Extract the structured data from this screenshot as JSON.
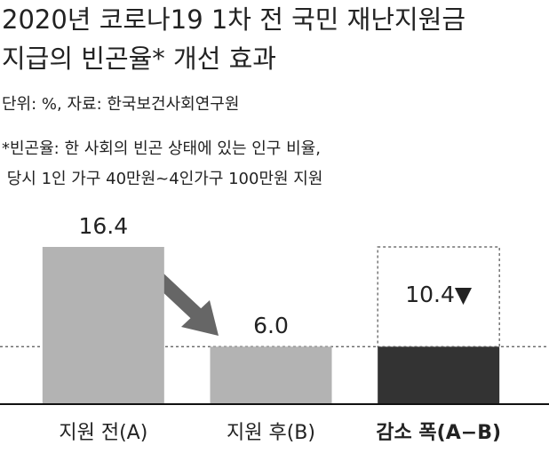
{
  "chart_data": {
    "type": "bar",
    "title": [
      "2020년 코로나19 1차 전 국민 재난지원금",
      "지급의 빈곤율* 개선 효과"
    ],
    "source": "단위: %, 자료: 한국보건사회연구원",
    "notes": [
      "*빈곤율: 한 사회의 빈곤 상태에 있는 인구 비율,",
      " 당시 1인 가구 40만원~4인가구 100만원 지원"
    ],
    "categories": [
      "지원 전(A)",
      "지원 후(B)",
      "감소 폭(A−B)"
    ],
    "values": [
      16.4,
      6.0,
      10.4
    ],
    "value_labels": [
      "16.4",
      "6.0",
      "10.4▼"
    ],
    "colors": [
      "#b3b3b3",
      "#b3b3b3",
      "#333333"
    ],
    "ylim": [
      0,
      16.4
    ]
  }
}
